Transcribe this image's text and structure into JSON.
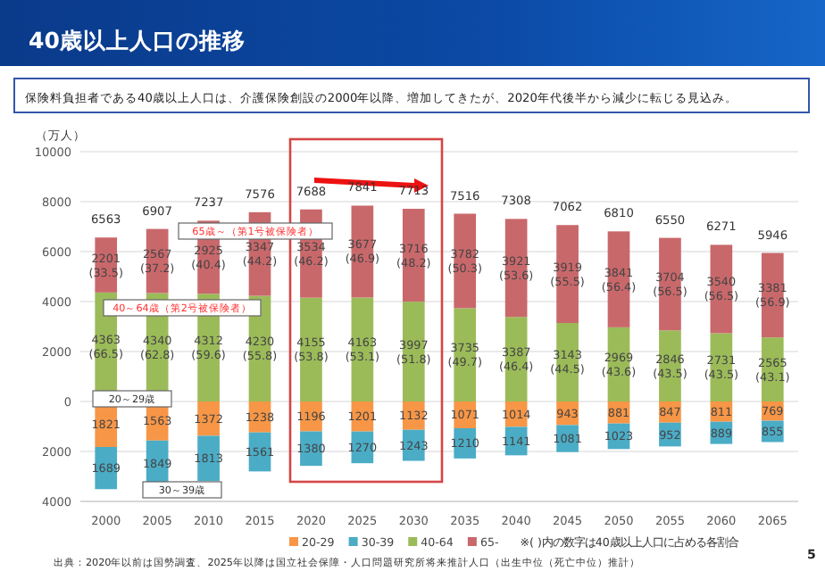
{
  "chart_data": {
    "type": "bar",
    "title": "40歳以上人口の推移",
    "subtitle": "保険料負担者である40歳以上人口は、介護保険創設の2000年以降、増加してきたが、2020年代後半から減少に転じる見込み。",
    "ylabel": "（万人）",
    "categories": [
      "2000",
      "2005",
      "2010",
      "2015",
      "2020",
      "2025",
      "2030",
      "2035",
      "2040",
      "2045",
      "2050",
      "2055",
      "2060",
      "2065"
    ],
    "series": [
      {
        "name": "20-29",
        "color": "#f79646",
        "base": [
          -1821,
          -1563,
          -1372,
          -1238,
          -1196,
          -1201,
          -1132,
          -1071,
          -1014,
          -943,
          -881,
          -847,
          -811,
          -769
        ],
        "values": [
          1821,
          1563,
          1372,
          1238,
          1196,
          1201,
          1132,
          1071,
          1014,
          943,
          881,
          847,
          811,
          769
        ],
        "value_labels": [
          "1821",
          "1563",
          "1372",
          "1238",
          "1196",
          "1201",
          "1132",
          "1071",
          "1014",
          "943",
          "881",
          "847",
          "811",
          "769"
        ]
      },
      {
        "name": "30-39",
        "color": "#4bacc6",
        "base": [
          -3510,
          -3412,
          -3185,
          -2799,
          -2576,
          -2471,
          -2375,
          -2281,
          -2155,
          -2024,
          -1904,
          -1799,
          -1700,
          -1624
        ],
        "values": [
          1689,
          1849,
          1813,
          1561,
          1380,
          1270,
          1243,
          1210,
          1141,
          1081,
          1023,
          952,
          889,
          855
        ],
        "value_labels": [
          "1689",
          "1849",
          "1813",
          "1561",
          "1380",
          "1270",
          "1243",
          "1210",
          "1141",
          "1081",
          "1023",
          "952",
          "889",
          "855"
        ]
      },
      {
        "name": "40-64",
        "color": "#9bbb59",
        "base": [
          0,
          0,
          0,
          0,
          0,
          0,
          0,
          0,
          0,
          0,
          0,
          0,
          0,
          0
        ],
        "values": [
          4363,
          4340,
          4312,
          4230,
          4155,
          4163,
          3997,
          3735,
          3387,
          3143,
          2969,
          2846,
          2731,
          2565
        ],
        "value_labels": [
          "4363\n(66.5)",
          "4340\n(62.8)",
          "4312\n(59.6)",
          "4230\n(55.8)",
          "4155\n(53.8)",
          "4163\n(53.1)",
          "3997\n(51.8)",
          "3735\n(49.7)",
          "3387\n(46.4)",
          "3143\n(44.5)",
          "2969\n(43.6)",
          "2846\n(43.5)",
          "2731\n(43.5)",
          "2565\n(43.1)"
        ]
      },
      {
        "name": "65-",
        "color": "#c9686b",
        "base": [
          4363,
          4340,
          4312,
          4230,
          4155,
          4163,
          3997,
          3735,
          3387,
          3143,
          2969,
          2846,
          2731,
          2565
        ],
        "values": [
          2201,
          2567,
          2925,
          3347,
          3534,
          3677,
          3716,
          3782,
          3921,
          3919,
          3841,
          3704,
          3540,
          3381
        ],
        "value_labels": [
          "2201\n(33.5)",
          "2567\n(37.2)",
          "2925\n(40.4)",
          "3347\n(44.2)",
          "3534\n(46.2)",
          "3677\n(46.9)",
          "3716\n(48.2)",
          "3782\n(50.3)",
          "3921\n(53.6)",
          "3919\n(55.5)",
          "3841\n(56.4)",
          "3704\n(56.5)",
          "3540\n(56.5)",
          "3381\n(56.9)"
        ]
      }
    ],
    "ylim": [
      -4000,
      10000
    ],
    "yticks": [
      {
        "value": -4000,
        "label": "4000"
      },
      {
        "value": -2000,
        "label": "2000"
      },
      0,
      2000,
      4000,
      6000,
      8000,
      10000
    ],
    "grid": "y",
    "legend": "bottom",
    "annotations": [
      {
        "text": "6563",
        "x": "2000",
        "y": 6563
      },
      {
        "text": "6907",
        "x": "2005",
        "y": 6907
      },
      {
        "text": "7237",
        "x": "2010",
        "y": 7237
      },
      {
        "text": "7576",
        "x": "2015",
        "y": 7576
      },
      {
        "text": "7688",
        "x": "2020",
        "y": 7688
      },
      {
        "text": "7841",
        "x": "2025",
        "y": 7841
      },
      {
        "text": "7713",
        "x": "2030",
        "y": 7713
      },
      {
        "text": "7516",
        "x": "2035",
        "y": 7516
      },
      {
        "text": "7308",
        "x": "2040",
        "y": 7308
      },
      {
        "text": "7062",
        "x": "2045",
        "y": 7062
      },
      {
        "text": "6810",
        "x": "2050",
        "y": 6810
      },
      {
        "text": "6550",
        "x": "2055",
        "y": 6550
      },
      {
        "text": "6271",
        "x": "2060",
        "y": 6271
      },
      {
        "text": "5946",
        "x": "2065",
        "y": 5946
      },
      "65歳～（第1号被保険者）",
      "40～64歳（第2号被保険者）",
      "20～29歳",
      "30～39歳",
      "※( )内の数字は40歳以上人口に占める各割合",
      "出典：2020年以前は国勢調査、2025年以降は国立社会保障・人口問題研究所将来推計人口（出生中位（死亡中位）推計）",
      "5"
    ]
  }
}
